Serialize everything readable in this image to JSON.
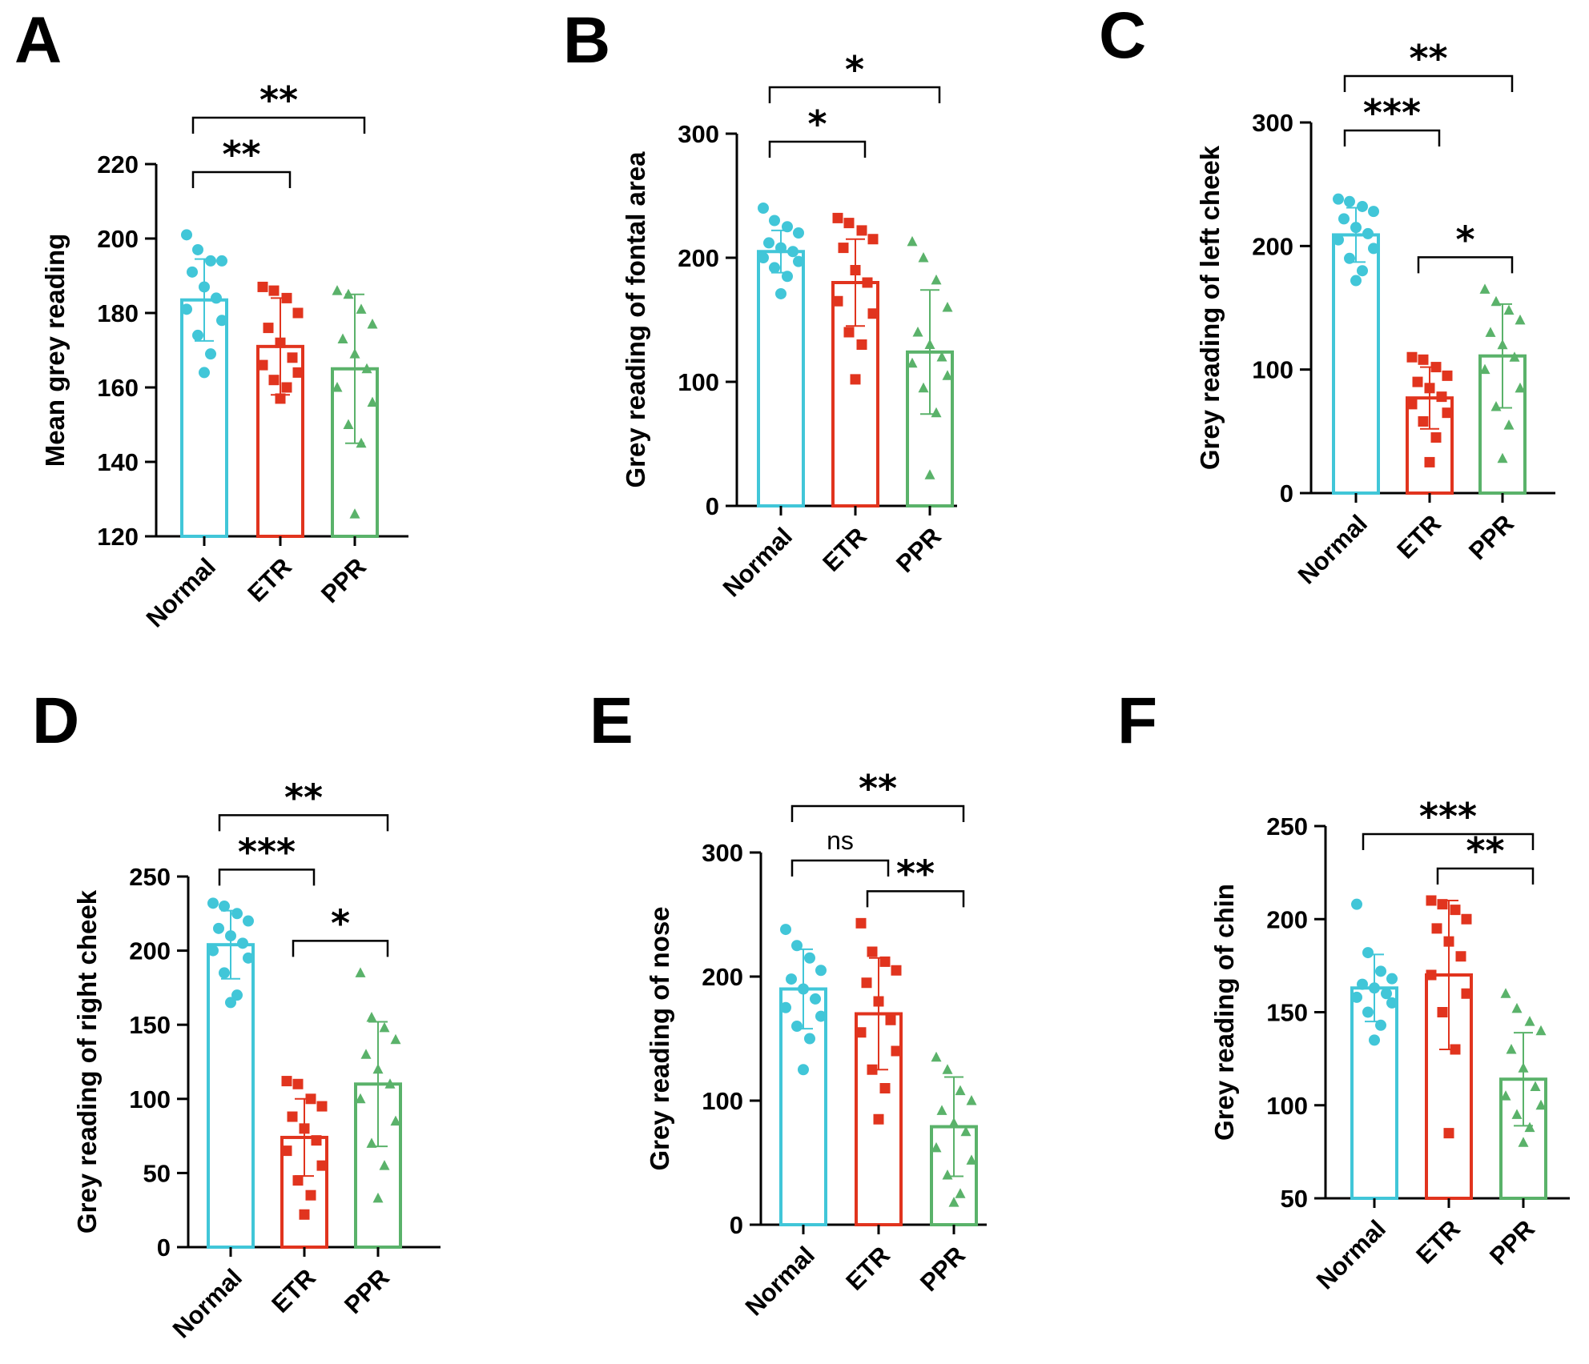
{
  "figure": {
    "colors": {
      "Normal": "#41c6d8",
      "ETR": "#e1341e",
      "PPR": "#5ab26a",
      "axis": "#000000"
    }
  },
  "chart_data": [
    {
      "panel": "A",
      "type": "bar",
      "ylabel": "Mean grey reading",
      "ylim": [
        120,
        220
      ],
      "yticks": [
        120,
        140,
        160,
        180,
        200,
        220
      ],
      "categories": [
        "Normal",
        "ETR",
        "PPR"
      ],
      "series": [
        {
          "name": "Normal",
          "marker": "circle",
          "mean": 183.5,
          "sd": 11,
          "points": [
            201,
            197,
            194,
            194,
            191,
            187,
            184,
            181,
            178,
            174,
            169,
            164
          ]
        },
        {
          "name": "ETR",
          "marker": "square",
          "mean": 171,
          "sd": 13,
          "points": [
            187,
            186,
            184,
            180,
            176,
            172,
            168,
            166,
            164,
            162,
            160,
            157
          ]
        },
        {
          "name": "PPR",
          "marker": "triangle",
          "mean": 165,
          "sd": 20,
          "points": [
            186,
            185,
            181,
            177,
            173,
            169,
            165,
            160,
            156,
            150,
            145,
            126
          ]
        }
      ],
      "comparisons": [
        {
          "from": "Normal",
          "to": "ETR",
          "label": "**"
        },
        {
          "from": "Normal",
          "to": "PPR",
          "label": "**"
        }
      ]
    },
    {
      "panel": "B",
      "type": "bar",
      "ylabel": "Grey reading of fontal area",
      "ylim": [
        0,
        300
      ],
      "yticks": [
        0,
        100,
        200,
        300
      ],
      "categories": [
        "Normal",
        "ETR",
        "PPR"
      ],
      "series": [
        {
          "name": "Normal",
          "marker": "circle",
          "mean": 205,
          "sd": 17,
          "points": [
            240,
            230,
            225,
            220,
            212,
            208,
            205,
            200,
            197,
            192,
            185,
            171
          ]
        },
        {
          "name": "ETR",
          "marker": "square",
          "mean": 180,
          "sd": 35,
          "points": [
            232,
            228,
            222,
            215,
            208,
            190,
            180,
            165,
            155,
            140,
            130,
            102
          ]
        },
        {
          "name": "PPR",
          "marker": "triangle",
          "mean": 124,
          "sd": 50,
          "points": [
            213,
            200,
            182,
            160,
            140,
            130,
            120,
            115,
            105,
            95,
            75,
            25
          ]
        }
      ],
      "comparisons": [
        {
          "from": "Normal",
          "to": "ETR",
          "label": "*"
        },
        {
          "from": "Normal",
          "to": "PPR",
          "label": "*"
        }
      ]
    },
    {
      "panel": "C",
      "type": "bar",
      "ylabel": "Grey reading of left cheek",
      "ylim": [
        0,
        300
      ],
      "yticks": [
        0,
        100,
        200,
        300
      ],
      "categories": [
        "Normal",
        "ETR",
        "PPR"
      ],
      "series": [
        {
          "name": "Normal",
          "marker": "circle",
          "mean": 209,
          "sd": 22,
          "points": [
            238,
            236,
            232,
            228,
            222,
            215,
            210,
            205,
            198,
            190,
            180,
            172
          ]
        },
        {
          "name": "ETR",
          "marker": "square",
          "mean": 77,
          "sd": 25,
          "points": [
            110,
            108,
            102,
            95,
            90,
            85,
            78,
            72,
            65,
            58,
            45,
            25
          ]
        },
        {
          "name": "PPR",
          "marker": "triangle",
          "mean": 111,
          "sd": 42,
          "points": [
            165,
            155,
            148,
            140,
            130,
            120,
            110,
            100,
            85,
            70,
            55,
            28
          ]
        }
      ],
      "comparisons": [
        {
          "from": "Normal",
          "to": "ETR",
          "label": "***"
        },
        {
          "from": "Normal",
          "to": "PPR",
          "label": "**"
        },
        {
          "from": "ETR",
          "to": "PPR",
          "label": "*"
        }
      ]
    },
    {
      "panel": "D",
      "type": "bar",
      "ylabel": "Grey reading of right cheek",
      "ylim": [
        0,
        250
      ],
      "yticks": [
        0,
        50,
        100,
        150,
        200,
        250
      ],
      "categories": [
        "Normal",
        "ETR",
        "PPR"
      ],
      "series": [
        {
          "name": "Normal",
          "marker": "circle",
          "mean": 204,
          "sd": 23,
          "points": [
            232,
            230,
            225,
            220,
            215,
            210,
            205,
            200,
            195,
            185,
            170,
            165
          ]
        },
        {
          "name": "ETR",
          "marker": "square",
          "mean": 74,
          "sd": 26,
          "points": [
            112,
            110,
            100,
            95,
            88,
            80,
            72,
            65,
            55,
            45,
            35,
            22
          ]
        },
        {
          "name": "PPR",
          "marker": "triangle",
          "mean": 110,
          "sd": 42,
          "points": [
            185,
            155,
            148,
            140,
            130,
            120,
            110,
            100,
            85,
            70,
            55,
            33
          ]
        }
      ],
      "comparisons": [
        {
          "from": "Normal",
          "to": "ETR",
          "label": "***"
        },
        {
          "from": "Normal",
          "to": "PPR",
          "label": "**"
        },
        {
          "from": "ETR",
          "to": "PPR",
          "label": "*"
        }
      ]
    },
    {
      "panel": "E",
      "type": "bar",
      "ylabel": "Grey reading of nose",
      "ylim": [
        0,
        300
      ],
      "yticks": [
        0,
        100,
        200,
        300
      ],
      "categories": [
        "Normal",
        "ETR",
        "PPR"
      ],
      "series": [
        {
          "name": "Normal",
          "marker": "circle",
          "mean": 190,
          "sd": 32,
          "points": [
            238,
            225,
            215,
            205,
            198,
            190,
            182,
            175,
            168,
            160,
            150,
            125
          ]
        },
        {
          "name": "ETR",
          "marker": "square",
          "mean": 170,
          "sd": 45,
          "points": [
            243,
            220,
            212,
            205,
            195,
            180,
            165,
            155,
            140,
            125,
            110,
            85
          ]
        },
        {
          "name": "PPR",
          "marker": "triangle",
          "mean": 79,
          "sd": 40,
          "points": [
            135,
            125,
            108,
            100,
            92,
            82,
            75,
            62,
            52,
            40,
            25,
            18
          ]
        }
      ],
      "comparisons": [
        {
          "from": "Normal",
          "to": "ETR",
          "label": "ns"
        },
        {
          "from": "Normal",
          "to": "PPR",
          "label": "**"
        },
        {
          "from": "ETR",
          "to": "PPR",
          "label": "**"
        }
      ]
    },
    {
      "panel": "F",
      "type": "bar",
      "ylabel": "Grey reading of chin",
      "ylim": [
        50,
        250
      ],
      "yticks": [
        50,
        100,
        150,
        200,
        250
      ],
      "categories": [
        "Normal",
        "ETR",
        "PPR"
      ],
      "series": [
        {
          "name": "Normal",
          "marker": "circle",
          "mean": 163,
          "sd": 18,
          "points": [
            208,
            182,
            172,
            168,
            165,
            163,
            160,
            158,
            155,
            150,
            143,
            135
          ]
        },
        {
          "name": "ETR",
          "marker": "square",
          "mean": 170,
          "sd": 40,
          "points": [
            210,
            208,
            205,
            200,
            195,
            188,
            180,
            170,
            160,
            150,
            130,
            85
          ]
        },
        {
          "name": "PPR",
          "marker": "triangle",
          "mean": 114,
          "sd": 25,
          "points": [
            160,
            152,
            145,
            140,
            130,
            120,
            110,
            105,
            100,
            95,
            88,
            80
          ]
        }
      ],
      "comparisons": [
        {
          "from": "Normal",
          "to": "PPR",
          "label": "***"
        },
        {
          "from": "ETR",
          "to": "PPR",
          "label": "**"
        }
      ]
    }
  ]
}
